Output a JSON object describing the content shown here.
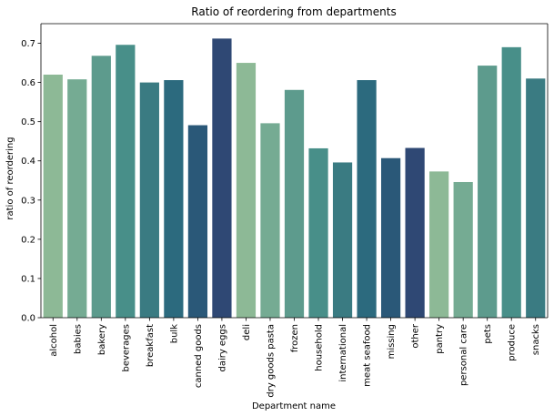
{
  "chart_data": {
    "type": "bar",
    "title": "Ratio of reordering from departments",
    "xlabel": "Department name",
    "ylabel": "ratio of reordering",
    "ylim": [
      0,
      0.75
    ],
    "yticks": [
      "0.0",
      "0.1",
      "0.2",
      "0.3",
      "0.4",
      "0.5",
      "0.6",
      "0.7"
    ],
    "grid": false,
    "categories": [
      "alcohol",
      "babies",
      "bakery",
      "beverages",
      "breakfast",
      "bulk",
      "canned goods",
      "dairy eggs",
      "deli",
      "dry goods pasta",
      "frozen",
      "household",
      "international",
      "meat seafood",
      "missing",
      "other",
      "pantry",
      "personal care",
      "pets",
      "produce",
      "snacks"
    ],
    "values": [
      0.62,
      0.608,
      0.668,
      0.696,
      0.6,
      0.606,
      0.491,
      0.712,
      0.65,
      0.496,
      0.581,
      0.432,
      0.396,
      0.606,
      0.407,
      0.433,
      0.373,
      0.346,
      0.643,
      0.69,
      0.61
    ],
    "colors": [
      "#8db996",
      "#75ab93",
      "#5d9b8d",
      "#488f89",
      "#3a7b82",
      "#2c6a7e",
      "#2a5878",
      "#2f4874",
      "#8db996",
      "#75ab93",
      "#5d9b8d",
      "#488f89",
      "#3a7b82",
      "#2c6a7e",
      "#2a5878",
      "#2f4874",
      "#8db996",
      "#75ab93",
      "#5d9b8d",
      "#488f89",
      "#3a7b82"
    ]
  }
}
